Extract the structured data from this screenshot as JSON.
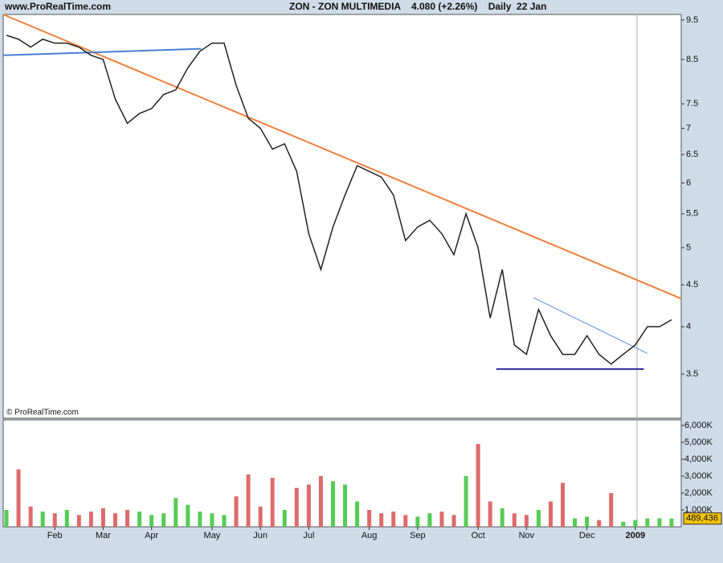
{
  "chart_data": [
    {
      "type": "line",
      "scale": "log",
      "source": "www.ProRealTime.com",
      "title": "ZON - ZON MULTIMEDIA    4.080 (+2.26%)    Daily  22 Jan",
      "watermark": "© ProRealTime.com",
      "color": "#222222",
      "values": [
        9.1,
        9.0,
        8.8,
        9.0,
        8.9,
        8.9,
        8.8,
        8.6,
        8.5,
        7.6,
        7.1,
        7.3,
        7.4,
        7.7,
        7.8,
        8.3,
        8.7,
        8.9,
        8.9,
        7.9,
        7.2,
        7.0,
        6.6,
        6.7,
        6.2,
        5.2,
        4.7,
        5.3,
        5.8,
        6.3,
        6.2,
        6.1,
        5.8,
        5.1,
        5.3,
        5.4,
        5.2,
        4.9,
        5.5,
        5.0,
        4.1,
        4.7,
        3.8,
        3.7,
        4.2,
        3.9,
        3.7,
        3.7,
        3.9,
        3.7,
        3.6,
        3.7,
        3.8,
        4.0,
        4.0,
        4.08
      ],
      "ylim": [
        3.09,
        9.65
      ],
      "yticks": [
        9.5,
        8.5,
        7.5,
        7,
        6.5,
        6,
        5.5,
        5,
        4.5,
        4,
        3.5
      ],
      "trendlines": [
        {
          "color": "#f07f3c",
          "width": 2,
          "x": [
            -0.27,
            55.8
          ],
          "y": [
            9.65,
            4.33
          ]
        },
        {
          "color": "#4a7fd6",
          "width": 2,
          "x": [
            -0.27,
            16.1
          ],
          "y": [
            8.6,
            8.76
          ]
        },
        {
          "color": "#2b2b9a",
          "width": 2,
          "x": [
            40.5,
            52.7
          ],
          "y": [
            3.55,
            3.55
          ]
        },
        {
          "color": "#5a8ee0",
          "width": 1,
          "x": [
            43.6,
            53.0
          ],
          "y": [
            4.34,
            3.71
          ]
        }
      ]
    },
    {
      "type": "bar",
      "up_color": "#55cc55",
      "down_color": "#dd6b6b",
      "categories": [
        null,
        null,
        null,
        null,
        "Feb",
        null,
        null,
        null,
        "Mar",
        null,
        null,
        null,
        "Apr",
        null,
        null,
        null,
        null,
        "May",
        null,
        null,
        null,
        "Jun",
        null,
        null,
        null,
        "Jul",
        null,
        null,
        null,
        null,
        "Aug",
        null,
        null,
        null,
        "Sep",
        null,
        null,
        null,
        null,
        "Oct",
        null,
        null,
        null,
        "Nov",
        null,
        null,
        null,
        null,
        "Dec",
        null,
        null,
        null,
        "2009",
        null,
        null,
        null
      ],
      "values": [
        1000000,
        3400000,
        1200000,
        900000,
        800000,
        1000000,
        700000,
        900000,
        1100000,
        800000,
        1000000,
        900000,
        700000,
        800000,
        1700000,
        1300000,
        900000,
        800000,
        700000,
        1800000,
        3100000,
        1200000,
        2900000,
        1000000,
        2300000,
        2500000,
        3000000,
        2700000,
        2500000,
        1500000,
        1000000,
        800000,
        900000,
        700000,
        600000,
        800000,
        900000,
        700000,
        3000000,
        4900000,
        1500000,
        1100000,
        800000,
        700000,
        1000000,
        1500000,
        2600000,
        500000,
        600000,
        400000,
        2000000,
        300000,
        400000,
        500000,
        500000,
        489436
      ],
      "value_labels": [
        null,
        null,
        null,
        null,
        null,
        null,
        null,
        null,
        null,
        null,
        null,
        null,
        null,
        null,
        null,
        null,
        null,
        null,
        null,
        null,
        null,
        null,
        null,
        null,
        null,
        null,
        null,
        null,
        null,
        null,
        null,
        null,
        null,
        null,
        null,
        null,
        null,
        null,
        null,
        null,
        null,
        null,
        null,
        null,
        null,
        null,
        null,
        null,
        null,
        null,
        null,
        null,
        null,
        null,
        null,
        "489,436"
      ],
      "ylim": [
        0,
        6330000
      ],
      "yticks": [
        {
          "value": 6000000,
          "label": "6,000K"
        },
        {
          "value": 5000000,
          "label": "5,000K"
        },
        {
          "value": 4000000,
          "label": "4,000K"
        },
        {
          "value": 3000000,
          "label": "3,000K"
        },
        {
          "value": 2000000,
          "label": "2,000K"
        },
        {
          "value": 1000000,
          "label": "1,000K"
        }
      ]
    }
  ]
}
